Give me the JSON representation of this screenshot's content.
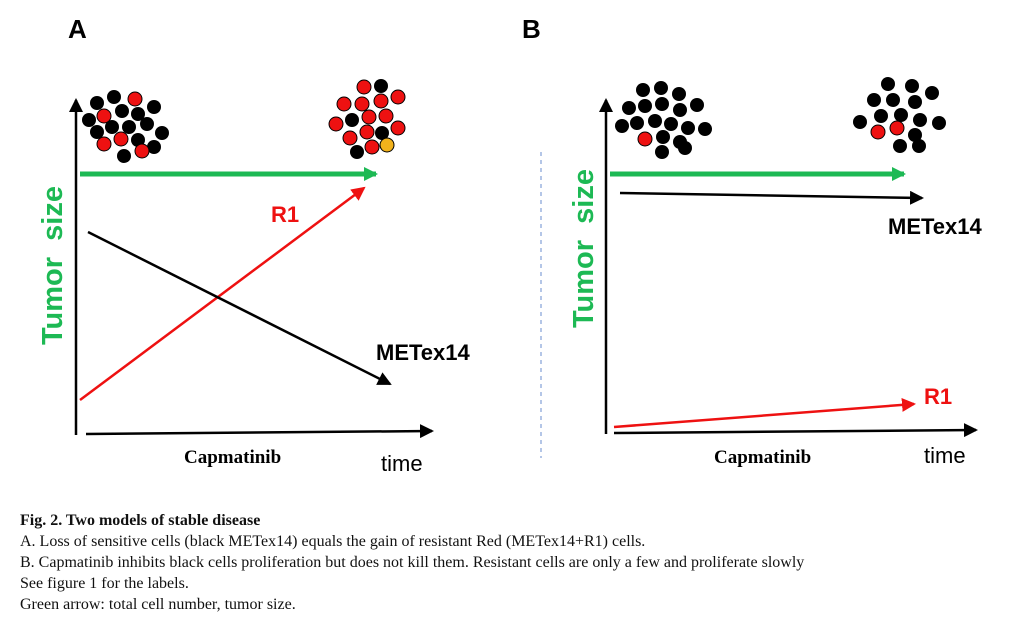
{
  "panels": [
    {
      "letter": "A",
      "y_label": "Tumor  size",
      "x_label": "Capmatinib",
      "time_label": "time",
      "r1_label": "R1",
      "metex_label": "METex14"
    },
    {
      "letter": "B",
      "y_label": "Tumor  size",
      "x_label": "Capmatinib",
      "time_label": "time",
      "r1_label": "R1",
      "metex_label": "METex14"
    }
  ],
  "colors": {
    "green": "#1db954",
    "red": "#ee1111",
    "black": "#000000",
    "yellow": "#f2b21c",
    "divider": "#6a8ccf"
  },
  "caption": {
    "title": "Fig. 2. Two models of stable disease",
    "line_a": "A. Loss of sensitive cells (black METex14) equals the gain of resistant Red (METex14+R1) cells.",
    "line_b": "B. Capmatinib inhibits black cells proliferation but does not kill them. Resistant cells are only a few and proliferate slowly",
    "line_c": "See figure 1 for the labels.",
    "line_d": "Green arrow: total cell number, tumor size."
  }
}
